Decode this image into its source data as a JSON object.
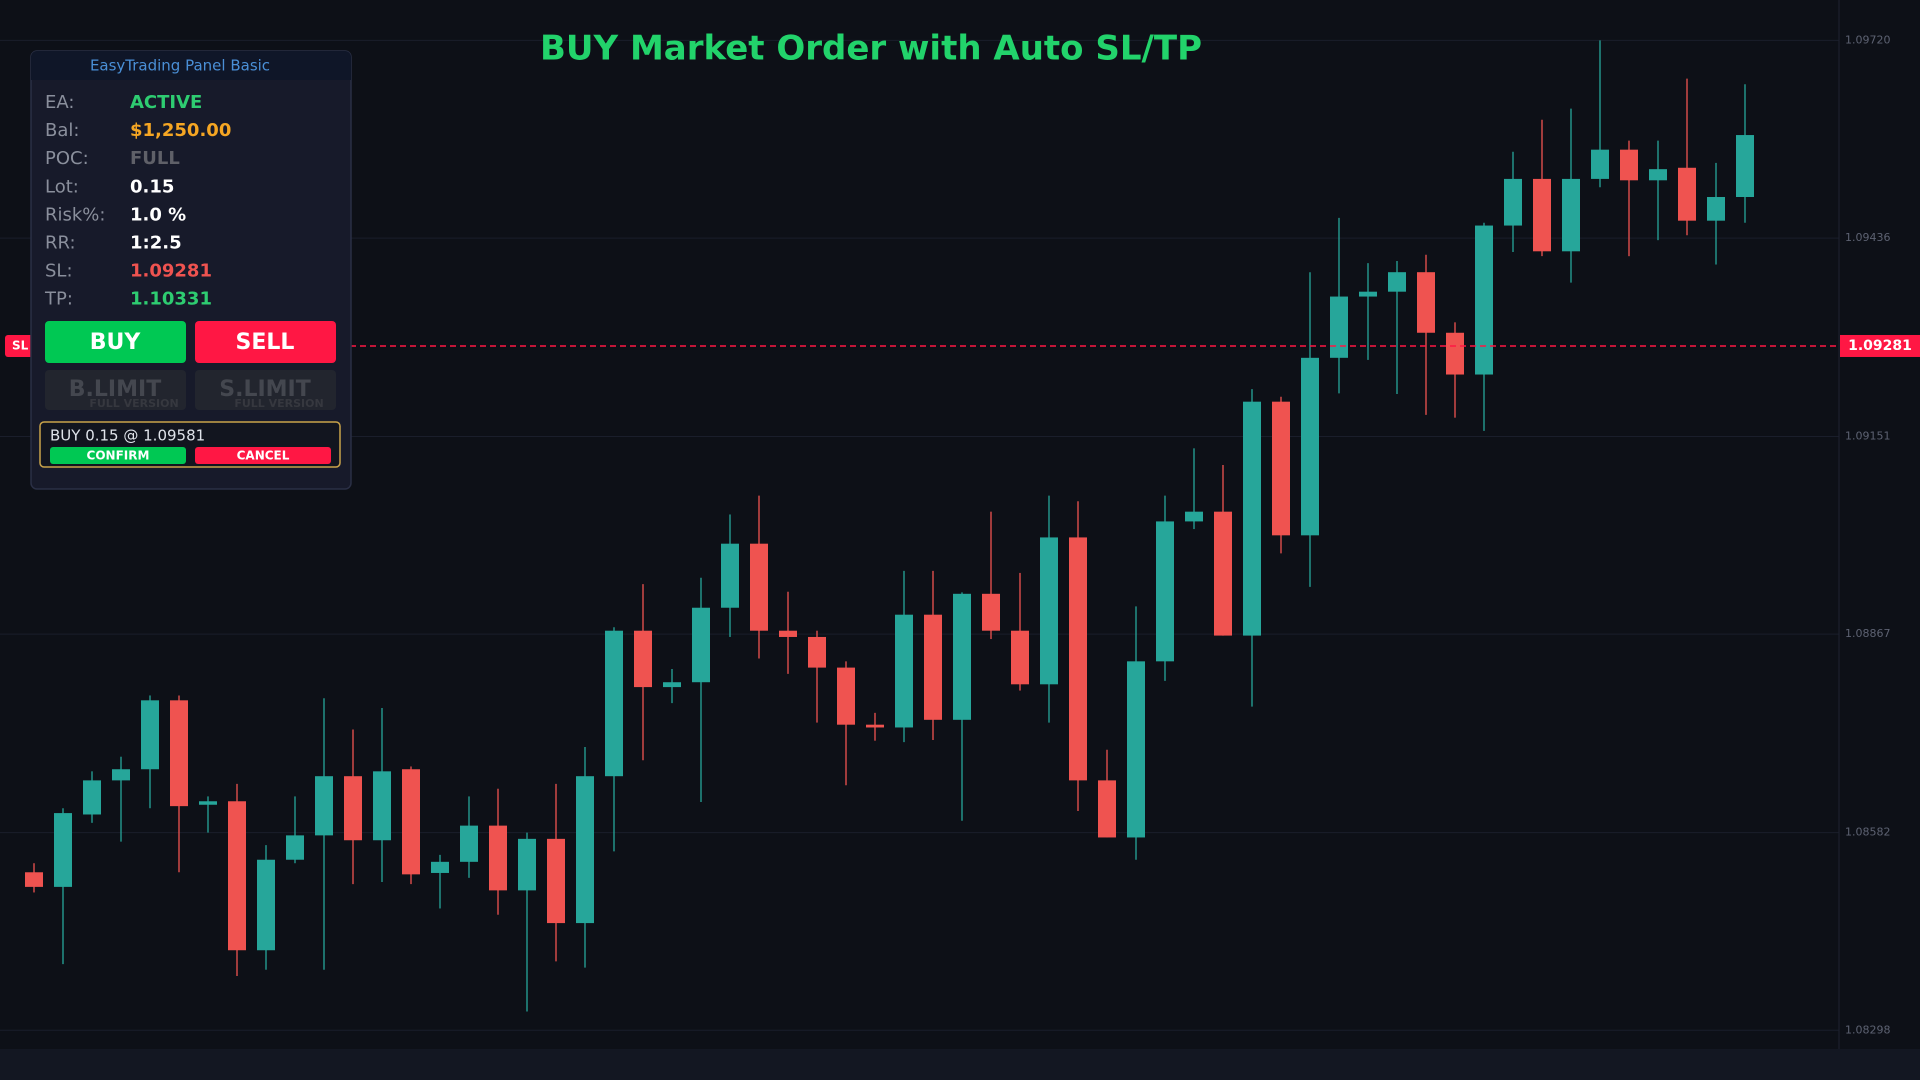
{
  "chart_data": {
    "type": "candlestick",
    "title": "BUY Market Order with Auto SL/TP",
    "up_color": "#26a69a",
    "down_color": "#ef5350",
    "ylim": [
      1.08274,
      1.09778
    ],
    "yticks": [
      {
        "value": 1.0972,
        "label": "1.09720"
      },
      1.09436,
      1.09151,
      1.08867,
      1.08582,
      1.08298
    ],
    "grid": true,
    "open": [
      1.08525,
      1.08504,
      1.08608,
      1.08657,
      1.08673,
      1.08772,
      1.08622,
      1.08627,
      1.08413,
      1.08543,
      1.08578,
      1.08663,
      1.08571,
      1.08673,
      1.08524,
      1.0854,
      1.08592,
      1.08499,
      1.08573,
      1.08452,
      1.08663,
      1.08872,
      1.08791,
      1.08798,
      1.08905,
      1.08997,
      1.08872,
      1.08863,
      1.08819,
      1.08737,
      1.08733,
      1.08895,
      1.08744,
      1.08925,
      1.08872,
      1.08795,
      1.09006,
      1.08657,
      1.08575,
      1.08828,
      1.09029,
      1.09043,
      1.08865,
      1.09201,
      1.09009,
      1.09264,
      1.09352,
      1.09359,
      1.09387,
      1.093,
      1.0924,
      1.09454,
      1.09521,
      1.09417,
      1.09521,
      1.09563,
      1.09519,
      1.09537,
      1.09461,
      1.09495
    ],
    "high": [
      1.08538,
      1.08617,
      1.0867,
      1.08691,
      1.08779,
      1.08779,
      1.08634,
      1.08652,
      1.08564,
      1.08634,
      1.08775,
      1.0873,
      1.08761,
      1.08677,
      1.0855,
      1.08634,
      1.08645,
      1.08582,
      1.08652,
      1.08705,
      1.08877,
      1.08939,
      1.08817,
      1.08948,
      1.09039,
      1.09066,
      1.08928,
      1.08872,
      1.08828,
      1.08754,
      1.08958,
      1.08958,
      1.08927,
      1.09043,
      1.08955,
      1.09066,
      1.09058,
      1.08701,
      1.08907,
      1.09066,
      1.09134,
      1.0911,
      1.09219,
      1.09208,
      1.09387,
      1.09465,
      1.094,
      1.09403,
      1.09412,
      1.09315,
      1.09458,
      1.0956,
      1.09606,
      1.09622,
      1.0972,
      1.09576,
      1.09576,
      1.09665,
      1.09544,
      1.09657
    ],
    "low": [
      1.08496,
      1.08393,
      1.08596,
      1.08569,
      1.08617,
      1.08525,
      1.08582,
      1.08376,
      1.08385,
      1.08538,
      1.08385,
      1.08508,
      1.08511,
      1.08508,
      1.08473,
      1.08517,
      1.08464,
      1.08325,
      1.08397,
      1.08388,
      1.08555,
      1.08686,
      1.08768,
      1.08626,
      1.08863,
      1.08832,
      1.0881,
      1.0874,
      1.0865,
      1.08714,
      1.08712,
      1.08715,
      1.08599,
      1.0886,
      1.08786,
      1.0874,
      1.08613,
      1.08575,
      1.08543,
      1.088,
      1.09018,
      1.08865,
      1.08763,
      1.08983,
      1.08935,
      1.09213,
      1.09261,
      1.09212,
      1.09182,
      1.09178,
      1.09159,
      1.09416,
      1.0941,
      1.09372,
      1.09509,
      1.0941,
      1.09433,
      1.0944,
      1.09398,
      1.09458
    ],
    "close": [
      1.08504,
      1.0861,
      1.08657,
      1.08673,
      1.08772,
      1.0862,
      1.08627,
      1.08413,
      1.08543,
      1.08578,
      1.08663,
      1.08571,
      1.0867,
      1.08522,
      1.0854,
      1.08592,
      1.08499,
      1.08573,
      1.08452,
      1.08663,
      1.08872,
      1.08791,
      1.08798,
      1.08905,
      1.08997,
      1.08872,
      1.08863,
      1.08819,
      1.08737,
      1.08733,
      1.08895,
      1.08744,
      1.08925,
      1.08872,
      1.08795,
      1.09006,
      1.08657,
      1.08575,
      1.08828,
      1.09029,
      1.09043,
      1.08865,
      1.09201,
      1.09009,
      1.09264,
      1.09352,
      1.09359,
      1.09387,
      1.093,
      1.0924,
      1.09454,
      1.09521,
      1.09417,
      1.09521,
      1.09563,
      1.09519,
      1.09535,
      1.09461,
      1.09495,
      1.09584
    ],
    "hlines": [
      {
        "name": "SL",
        "value": 1.09281,
        "color": "#ff1744"
      }
    ]
  },
  "panel": {
    "title": "EasyTrading Panel Basic",
    "rows": [
      {
        "label": "EA:",
        "value": "ACTIVE",
        "color": "#2ecc71"
      },
      {
        "label": "Bal:",
        "value": "$1,250.00",
        "color": "#f5a623"
      },
      {
        "label": "POC:",
        "value": "FULL",
        "color": "#5f6068"
      },
      {
        "label": "Lot:",
        "value": "0.15",
        "color": "#ffffff"
      },
      {
        "label": "Risk%:",
        "value": "1.0 %",
        "color": "#ffffff"
      },
      {
        "label": "RR:",
        "value": "1:2.5",
        "color": "#ffffff"
      },
      {
        "label": "SL:",
        "value": "1.09281",
        "color": "#ef5350"
      },
      {
        "label": "TP:",
        "value": "1.10331",
        "color": "#2ecc71"
      }
    ],
    "buy": "BUY",
    "sell": "SELL",
    "buy_limit": "B.LIMIT",
    "sell_limit": "S.LIMIT",
    "locked_note": "FULL VERSION",
    "confirm_text": "BUY 0.15 @ 1.09581",
    "confirm": "CONFIRM",
    "cancel": "CANCEL"
  }
}
